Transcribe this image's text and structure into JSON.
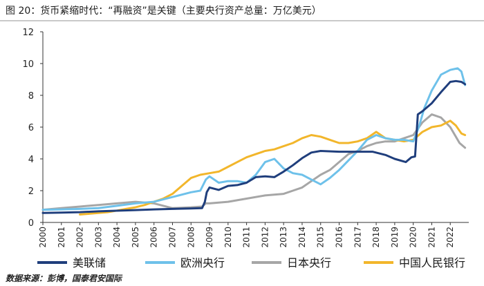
{
  "figure": {
    "title": "图 20：货币紧缩时代：“再融资”是关键（主要央行资产总量：万亿美元）",
    "source": "数据来源：彭博，国泰君安国际"
  },
  "chart_data": {
    "type": "line",
    "title": "",
    "xlabel": "",
    "ylabel": "",
    "ylim": [
      0,
      12
    ],
    "yticks": [
      "0",
      "2",
      "4",
      "6",
      "8",
      "10",
      "12"
    ],
    "xlim": [
      2000,
      2023
    ],
    "xticks": [
      "2000",
      "2001",
      "2002",
      "2003",
      "2004",
      "2005",
      "2006",
      "2007",
      "2008",
      "2009",
      "2010",
      "2011",
      "2012",
      "2013",
      "2014",
      "2015",
      "2016",
      "2017",
      "2018",
      "2019",
      "2020",
      "2021",
      "2022"
    ],
    "grid": false,
    "legend_position": "bottom",
    "series": [
      {
        "name": "美联储",
        "color": "#1f3e7c",
        "points": [
          [
            2000.0,
            0.6
          ],
          [
            2001.0,
            0.62
          ],
          [
            2002.0,
            0.65
          ],
          [
            2003.0,
            0.7
          ],
          [
            2004.0,
            0.74
          ],
          [
            2005.0,
            0.78
          ],
          [
            2006.0,
            0.82
          ],
          [
            2007.0,
            0.85
          ],
          [
            2008.0,
            0.88
          ],
          [
            2008.6,
            0.9
          ],
          [
            2008.75,
            1.3
          ],
          [
            2008.85,
            1.9
          ],
          [
            2009.0,
            2.2
          ],
          [
            2009.5,
            2.05
          ],
          [
            2010.0,
            2.3
          ],
          [
            2010.5,
            2.35
          ],
          [
            2011.0,
            2.5
          ],
          [
            2011.5,
            2.85
          ],
          [
            2012.0,
            2.9
          ],
          [
            2012.5,
            2.85
          ],
          [
            2013.0,
            3.2
          ],
          [
            2013.5,
            3.6
          ],
          [
            2014.0,
            4.05
          ],
          [
            2014.5,
            4.4
          ],
          [
            2015.0,
            4.5
          ],
          [
            2016.0,
            4.45
          ],
          [
            2017.0,
            4.45
          ],
          [
            2017.8,
            4.45
          ],
          [
            2018.5,
            4.25
          ],
          [
            2019.0,
            4.0
          ],
          [
            2019.6,
            3.8
          ],
          [
            2019.9,
            4.1
          ],
          [
            2020.1,
            4.15
          ],
          [
            2020.25,
            6.8
          ],
          [
            2020.5,
            7.0
          ],
          [
            2021.0,
            7.5
          ],
          [
            2021.5,
            8.2
          ],
          [
            2022.0,
            8.85
          ],
          [
            2022.3,
            8.9
          ],
          [
            2022.6,
            8.85
          ],
          [
            2022.8,
            8.7
          ]
        ]
      },
      {
        "name": "欧洲央行",
        "color": "#6ec1ea",
        "points": [
          [
            2000.0,
            0.8
          ],
          [
            2001.0,
            0.82
          ],
          [
            2002.0,
            0.85
          ],
          [
            2003.0,
            0.9
          ],
          [
            2004.0,
            1.05
          ],
          [
            2005.0,
            1.2
          ],
          [
            2006.0,
            1.3
          ],
          [
            2007.0,
            1.6
          ],
          [
            2008.0,
            1.9
          ],
          [
            2008.5,
            2.0
          ],
          [
            2008.8,
            2.7
          ],
          [
            2009.0,
            2.9
          ],
          [
            2009.5,
            2.5
          ],
          [
            2010.0,
            2.6
          ],
          [
            2010.5,
            2.6
          ],
          [
            2011.0,
            2.5
          ],
          [
            2011.5,
            3.0
          ],
          [
            2012.0,
            3.8
          ],
          [
            2012.5,
            4.0
          ],
          [
            2013.0,
            3.4
          ],
          [
            2013.5,
            3.1
          ],
          [
            2014.0,
            3.0
          ],
          [
            2014.5,
            2.7
          ],
          [
            2015.0,
            2.4
          ],
          [
            2015.5,
            2.8
          ],
          [
            2016.0,
            3.3
          ],
          [
            2016.5,
            3.9
          ],
          [
            2017.0,
            4.5
          ],
          [
            2017.5,
            5.2
          ],
          [
            2018.0,
            5.5
          ],
          [
            2018.5,
            5.3
          ],
          [
            2019.0,
            5.2
          ],
          [
            2019.5,
            5.2
          ],
          [
            2020.0,
            5.1
          ],
          [
            2020.3,
            6.0
          ],
          [
            2020.6,
            7.2
          ],
          [
            2021.0,
            8.3
          ],
          [
            2021.5,
            9.3
          ],
          [
            2022.0,
            9.6
          ],
          [
            2022.4,
            9.7
          ],
          [
            2022.6,
            9.5
          ],
          [
            2022.8,
            8.65
          ]
        ]
      },
      {
        "name": "日本央行",
        "color": "#a6a6a6",
        "points": [
          [
            2000.0,
            0.8
          ],
          [
            2001.0,
            0.9
          ],
          [
            2002.0,
            1.0
          ],
          [
            2003.0,
            1.1
          ],
          [
            2004.0,
            1.2
          ],
          [
            2005.0,
            1.3
          ],
          [
            2006.0,
            1.2
          ],
          [
            2007.0,
            0.9
          ],
          [
            2008.0,
            0.95
          ],
          [
            2008.6,
            1.0
          ],
          [
            2008.8,
            1.2
          ],
          [
            2009.0,
            1.2
          ],
          [
            2010.0,
            1.3
          ],
          [
            2011.0,
            1.5
          ],
          [
            2012.0,
            1.7
          ],
          [
            2013.0,
            1.8
          ],
          [
            2013.5,
            2.0
          ],
          [
            2014.0,
            2.2
          ],
          [
            2014.5,
            2.6
          ],
          [
            2015.0,
            3.0
          ],
          [
            2015.5,
            3.3
          ],
          [
            2016.0,
            3.8
          ],
          [
            2016.5,
            4.3
          ],
          [
            2017.0,
            4.5
          ],
          [
            2017.5,
            4.8
          ],
          [
            2018.0,
            5.0
          ],
          [
            2018.5,
            5.1
          ],
          [
            2019.0,
            5.1
          ],
          [
            2019.5,
            5.3
          ],
          [
            2020.0,
            5.5
          ],
          [
            2020.5,
            6.3
          ],
          [
            2021.0,
            6.8
          ],
          [
            2021.5,
            6.6
          ],
          [
            2022.0,
            6.0
          ],
          [
            2022.5,
            5.0
          ],
          [
            2022.8,
            4.7
          ]
        ]
      },
      {
        "name": "中国人民银行",
        "color": "#f2b62b",
        "points": [
          [
            2002.0,
            0.5
          ],
          [
            2002.5,
            0.55
          ],
          [
            2003.0,
            0.6
          ],
          [
            2003.5,
            0.65
          ],
          [
            2004.0,
            0.75
          ],
          [
            2004.5,
            0.85
          ],
          [
            2005.0,
            0.95
          ],
          [
            2005.5,
            1.1
          ],
          [
            2006.0,
            1.3
          ],
          [
            2006.5,
            1.5
          ],
          [
            2007.0,
            1.8
          ],
          [
            2007.5,
            2.3
          ],
          [
            2008.0,
            2.8
          ],
          [
            2008.5,
            3.0
          ],
          [
            2009.0,
            3.1
          ],
          [
            2009.5,
            3.2
          ],
          [
            2010.0,
            3.5
          ],
          [
            2010.5,
            3.8
          ],
          [
            2011.0,
            4.1
          ],
          [
            2011.5,
            4.3
          ],
          [
            2012.0,
            4.5
          ],
          [
            2012.5,
            4.6
          ],
          [
            2013.0,
            4.8
          ],
          [
            2013.5,
            5.0
          ],
          [
            2014.0,
            5.3
          ],
          [
            2014.5,
            5.5
          ],
          [
            2015.0,
            5.4
          ],
          [
            2015.5,
            5.2
          ],
          [
            2016.0,
            5.0
          ],
          [
            2016.5,
            5.0
          ],
          [
            2017.0,
            5.1
          ],
          [
            2017.5,
            5.3
          ],
          [
            2018.0,
            5.7
          ],
          [
            2018.5,
            5.3
          ],
          [
            2019.0,
            5.2
          ],
          [
            2019.5,
            5.1
          ],
          [
            2020.0,
            5.2
          ],
          [
            2020.5,
            5.7
          ],
          [
            2021.0,
            6.0
          ],
          [
            2021.5,
            6.1
          ],
          [
            2022.0,
            6.4
          ],
          [
            2022.3,
            6.1
          ],
          [
            2022.6,
            5.6
          ],
          [
            2022.8,
            5.5
          ]
        ]
      }
    ]
  }
}
